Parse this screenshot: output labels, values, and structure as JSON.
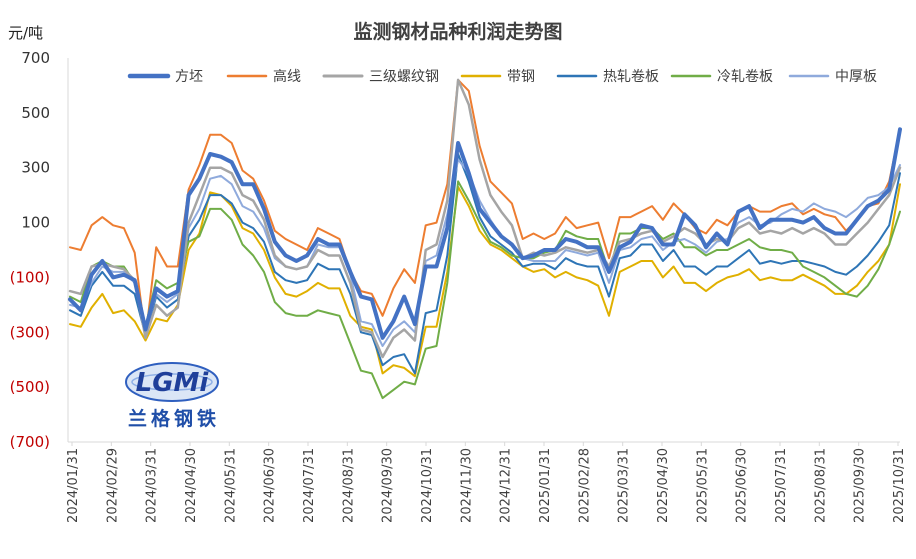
{
  "chart_data": {
    "type": "line",
    "title": "监测钢材品种利润走势图",
    "ylabel": "元/吨",
    "ylim": [
      -700,
      700
    ],
    "y_ticks": [
      "700",
      "500",
      "300",
      "100",
      "(100)",
      "(300)",
      "(500)",
      "(700)"
    ],
    "negative_tick_color": "#c00000",
    "legend_position": "top",
    "grid": false,
    "x_ticks": [
      "2024/01/31",
      "2024/02/29",
      "2024/03/31",
      "2024/04/30",
      "2024/05/31",
      "2024/06/30",
      "2024/07/31",
      "2024/08/31",
      "2024/09/30",
      "2024/10/31",
      "2024/11/30",
      "2024/12/31",
      "2025/01/31",
      "2025/02/28",
      "2025/03/31",
      "2025/04/30",
      "2025/05/31",
      "2025/06/30",
      "2025/07/31",
      "2025/08/31",
      "2025/09/30",
      "2025/10/31"
    ],
    "x_start": "2024/01/31",
    "x_end": "2025/10/31",
    "points_per_series": 78,
    "series": [
      {
        "name": "方坯",
        "color": "#4472c4",
        "width": 4,
        "values": [
          -180,
          -220,
          -90,
          -40,
          -100,
          -90,
          -110,
          -290,
          -140,
          -170,
          -150,
          200,
          260,
          350,
          340,
          320,
          240,
          240,
          150,
          30,
          -20,
          -40,
          -20,
          40,
          20,
          20,
          -80,
          -170,
          -180,
          -320,
          -260,
          -170,
          -270,
          -60,
          -60,
          80,
          390,
          280,
          150,
          100,
          50,
          20,
          -30,
          -20,
          0,
          0,
          40,
          30,
          10,
          10,
          -80,
          10,
          30,
          90,
          80,
          20,
          20,
          130,
          90,
          10,
          60,
          20,
          140,
          160,
          80,
          110,
          110,
          110,
          100,
          120,
          80,
          60,
          60,
          110,
          160,
          180,
          220,
          440
        ]
      },
      {
        "name": "高线",
        "color": "#ed7d31",
        "width": 2,
        "values": [
          10,
          0,
          90,
          120,
          90,
          80,
          -10,
          -320,
          10,
          -60,
          -60,
          220,
          310,
          420,
          420,
          390,
          290,
          260,
          180,
          70,
          40,
          20,
          0,
          80,
          60,
          40,
          -80,
          -150,
          -160,
          -240,
          -140,
          -70,
          -120,
          90,
          100,
          240,
          620,
          580,
          380,
          250,
          210,
          170,
          40,
          60,
          40,
          60,
          120,
          80,
          90,
          100,
          -30,
          120,
          120,
          140,
          160,
          110,
          170,
          130,
          80,
          60,
          110,
          90,
          140,
          160,
          140,
          140,
          160,
          170,
          130,
          150,
          130,
          120,
          70,
          110,
          160,
          170,
          250,
          440
        ]
      },
      {
        "name": "三级螺纹钢",
        "color": "#a5a5a5",
        "width": 2.5,
        "values": [
          -150,
          -160,
          -60,
          -50,
          -60,
          -70,
          -110,
          -320,
          -200,
          -240,
          -210,
          100,
          200,
          300,
          300,
          280,
          200,
          180,
          110,
          -20,
          -60,
          -70,
          -60,
          0,
          -20,
          -20,
          -120,
          -290,
          -300,
          -390,
          -320,
          -290,
          -330,
          0,
          20,
          180,
          620,
          530,
          330,
          200,
          140,
          90,
          -30,
          -10,
          -20,
          -10,
          10,
          0,
          -10,
          0,
          -60,
          30,
          40,
          60,
          70,
          30,
          50,
          80,
          60,
          20,
          40,
          30,
          80,
          100,
          60,
          70,
          60,
          80,
          60,
          80,
          60,
          20,
          20,
          60,
          100,
          150,
          200,
          300
        ]
      },
      {
        "name": "带钢",
        "color": "#e0b000",
        "width": 2,
        "values": [
          -270,
          -280,
          -210,
          -160,
          -230,
          -220,
          -260,
          -330,
          -250,
          -260,
          -200,
          0,
          60,
          210,
          200,
          160,
          80,
          60,
          0,
          -100,
          -160,
          -170,
          -150,
          -120,
          -140,
          -140,
          -240,
          -280,
          -290,
          -450,
          -420,
          -430,
          -460,
          -280,
          -280,
          -80,
          230,
          160,
          70,
          20,
          0,
          -30,
          -60,
          -80,
          -70,
          -100,
          -80,
          -100,
          -110,
          -130,
          -240,
          -80,
          -60,
          -40,
          -40,
          -100,
          -60,
          -120,
          -120,
          -150,
          -120,
          -100,
          -90,
          -70,
          -110,
          -100,
          -110,
          -110,
          -90,
          -110,
          -130,
          -160,
          -160,
          -130,
          -80,
          -40,
          20,
          240
        ]
      },
      {
        "name": "热轧卷板",
        "color": "#2e75b6",
        "width": 2,
        "values": [
          -220,
          -240,
          -130,
          -80,
          -130,
          -130,
          -160,
          -310,
          -170,
          -210,
          -180,
          50,
          110,
          200,
          200,
          170,
          100,
          80,
          30,
          -80,
          -110,
          -120,
          -110,
          -50,
          -70,
          -70,
          -160,
          -300,
          -310,
          -420,
          -390,
          -380,
          -450,
          -230,
          -220,
          -20,
          350,
          250,
          120,
          50,
          20,
          -10,
          -60,
          -50,
          -50,
          -70,
          -30,
          -50,
          -60,
          -60,
          -170,
          -30,
          -20,
          20,
          20,
          -40,
          0,
          -60,
          -60,
          -90,
          -60,
          -60,
          -30,
          0,
          -50,
          -40,
          -50,
          -40,
          -40,
          -50,
          -60,
          -80,
          -90,
          -60,
          -20,
          30,
          90,
          280
        ]
      },
      {
        "name": "冷轧卷板",
        "color": "#70ad47",
        "width": 2,
        "values": [
          -170,
          -190,
          -60,
          -40,
          -60,
          -60,
          -120,
          -280,
          -110,
          -140,
          -120,
          30,
          50,
          150,
          150,
          110,
          20,
          -20,
          -80,
          -190,
          -230,
          -240,
          -240,
          -220,
          -230,
          -240,
          -340,
          -440,
          -450,
          -540,
          -510,
          -480,
          -490,
          -360,
          -350,
          -120,
          250,
          180,
          100,
          30,
          10,
          -20,
          -30,
          -30,
          -10,
          0,
          70,
          50,
          40,
          40,
          -80,
          60,
          60,
          80,
          80,
          40,
          60,
          10,
          10,
          -20,
          0,
          0,
          20,
          40,
          10,
          0,
          0,
          -10,
          -60,
          -80,
          -100,
          -130,
          -160,
          -170,
          -130,
          -70,
          20,
          140
        ]
      },
      {
        "name": "中厚板",
        "color": "#8faadc",
        "width": 2,
        "values": [
          -200,
          -210,
          -120,
          -60,
          -80,
          -80,
          -120,
          -300,
          -160,
          -190,
          -160,
          80,
          150,
          260,
          270,
          240,
          160,
          140,
          80,
          -30,
          -60,
          -70,
          -60,
          20,
          10,
          10,
          -90,
          -260,
          -270,
          -350,
          -290,
          -260,
          -300,
          -40,
          -20,
          130,
          330,
          280,
          180,
          110,
          50,
          20,
          -30,
          -40,
          -40,
          -40,
          0,
          -10,
          -20,
          -10,
          -120,
          0,
          10,
          40,
          50,
          0,
          30,
          40,
          20,
          -10,
          30,
          40,
          100,
          120,
          90,
          100,
          130,
          150,
          140,
          170,
          150,
          140,
          120,
          150,
          190,
          200,
          230,
          310
        ]
      }
    ]
  },
  "logo": {
    "mark": "LGMi",
    "subtitle": "兰格钢铁"
  }
}
